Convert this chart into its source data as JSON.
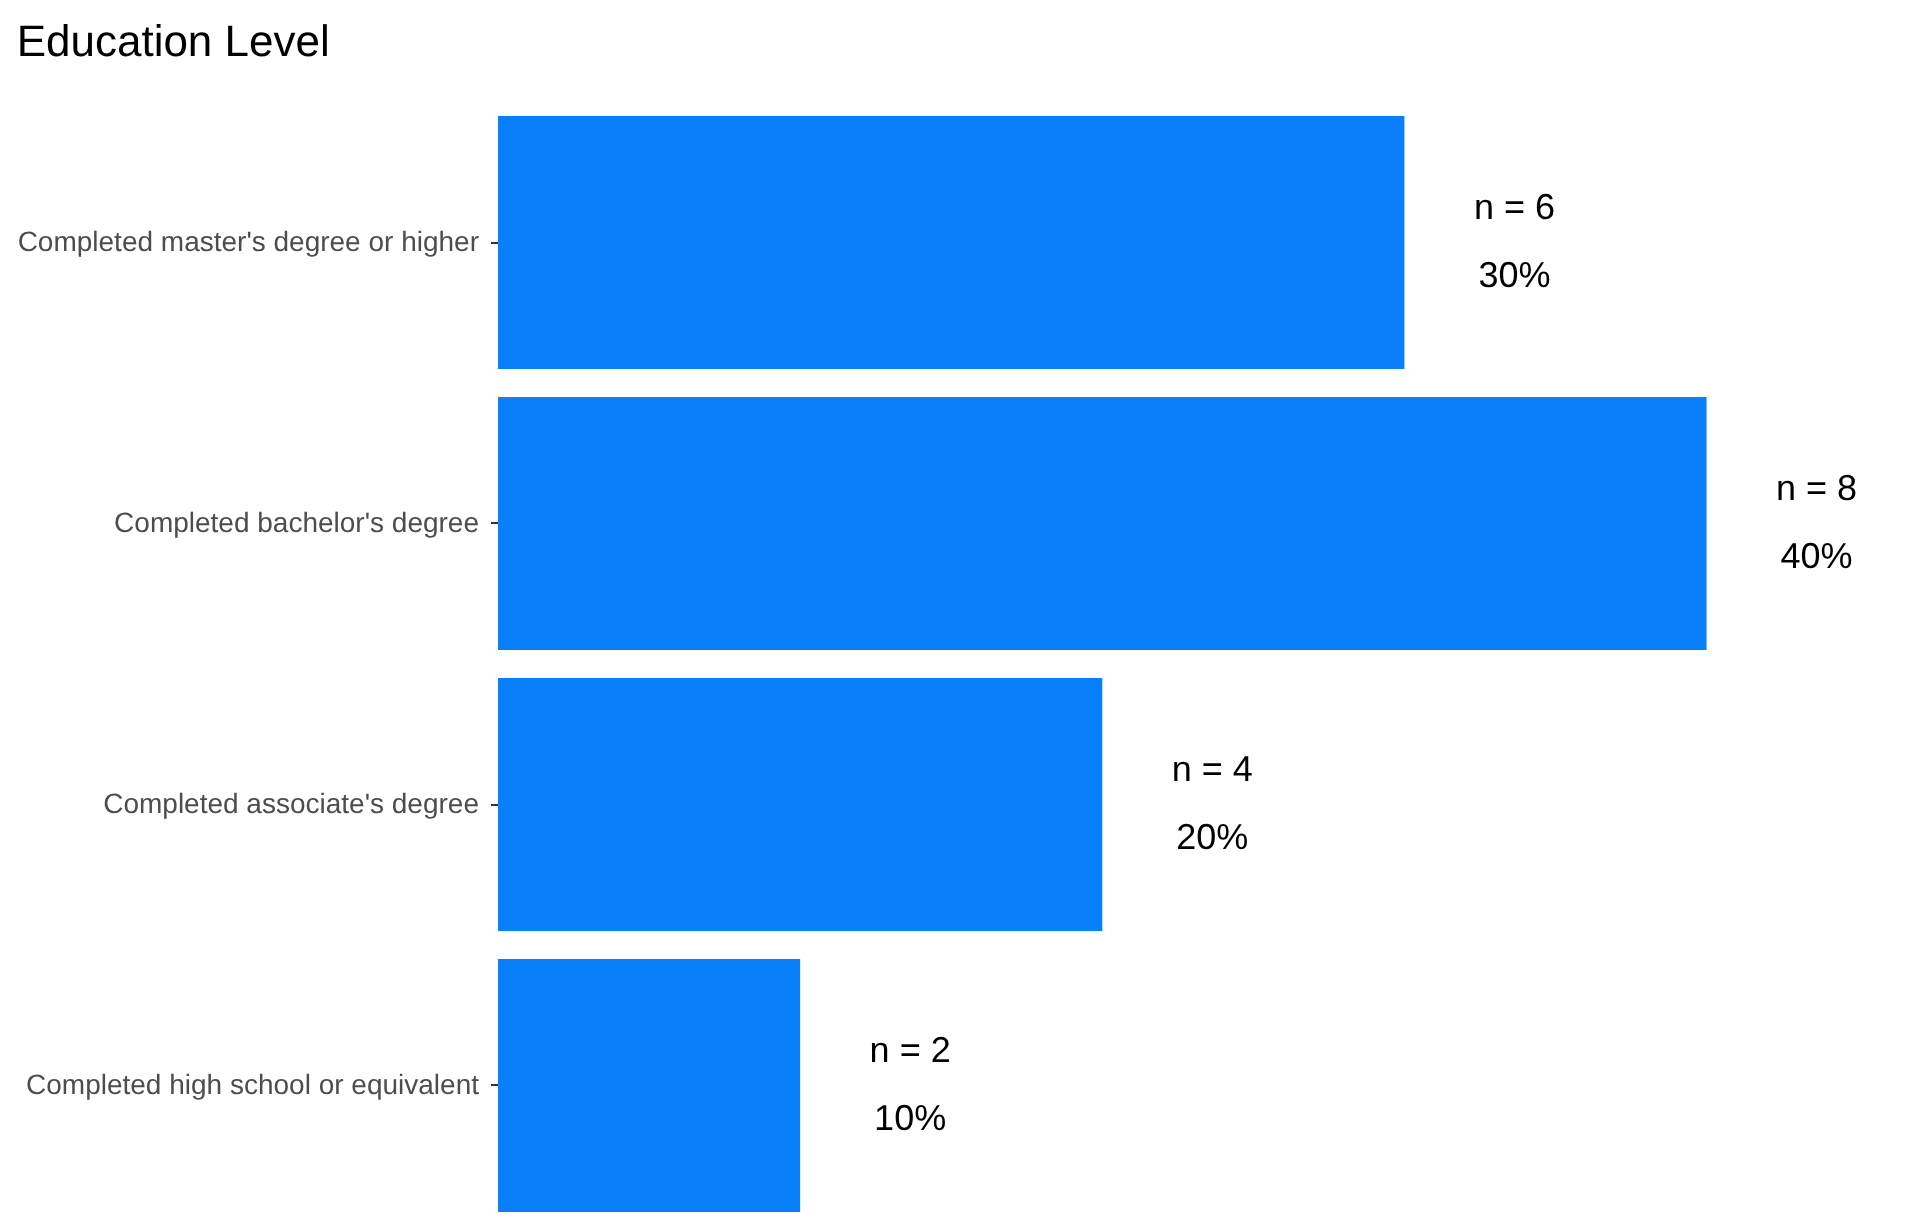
{
  "chart_data": {
    "type": "bar",
    "orientation": "horizontal",
    "title": "Education Level",
    "categories": [
      "Completed master's degree or higher",
      "Completed bachelor's degree",
      "Completed associate's degree",
      "Completed high school or equivalent"
    ],
    "values": [
      6,
      8,
      4,
      2
    ],
    "value_labels": [
      "n = 6\n30%",
      "n = 8\n40%",
      "n = 4\n20%",
      "n = 2\n10%"
    ],
    "color": "#0a7ffa"
  }
}
